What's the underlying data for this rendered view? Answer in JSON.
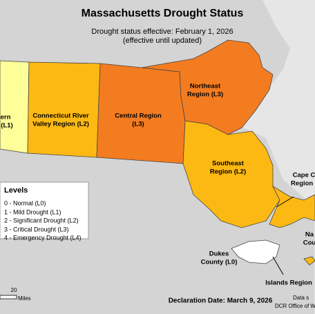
{
  "title": "Massachusetts Drought Status",
  "subtitle": [
    "Drought status effective: February 1, 2026",
    "(effective until updated)"
  ],
  "regions": [
    {
      "label": [
        "ern",
        "(L1)"
      ]
    },
    {
      "label": [
        "Connecticut River",
        "Valley Region (L2)"
      ]
    },
    {
      "label": [
        "Central Region",
        "(L3)"
      ]
    },
    {
      "label": [
        "Northeast",
        "Region (L3)"
      ]
    },
    {
      "label": [
        "Southeast",
        "Region (L2)"
      ]
    },
    {
      "label": [
        "Cape C",
        "Region ("
      ]
    },
    {
      "label": [
        "Na",
        "Cou"
      ]
    },
    {
      "label": [
        "Dukes",
        "County (L0)"
      ]
    },
    {
      "label": [
        "Islands Region"
      ]
    }
  ],
  "legend": {
    "title": "Levels",
    "items": [
      "0 - Normal (L0)",
      "1 - Mild Drought (L1)",
      "2 - Significant Drought (L2)",
      "3 - Critical Drought (L3)",
      "4 - Emergency Drought (L4)"
    ]
  },
  "scale_bar": {
    "value": "20",
    "unit": "Miles"
  },
  "declaration": "Declaration Date: March 9, 2026",
  "source": [
    "Data s",
    "DCR Office of Wate"
  ]
}
